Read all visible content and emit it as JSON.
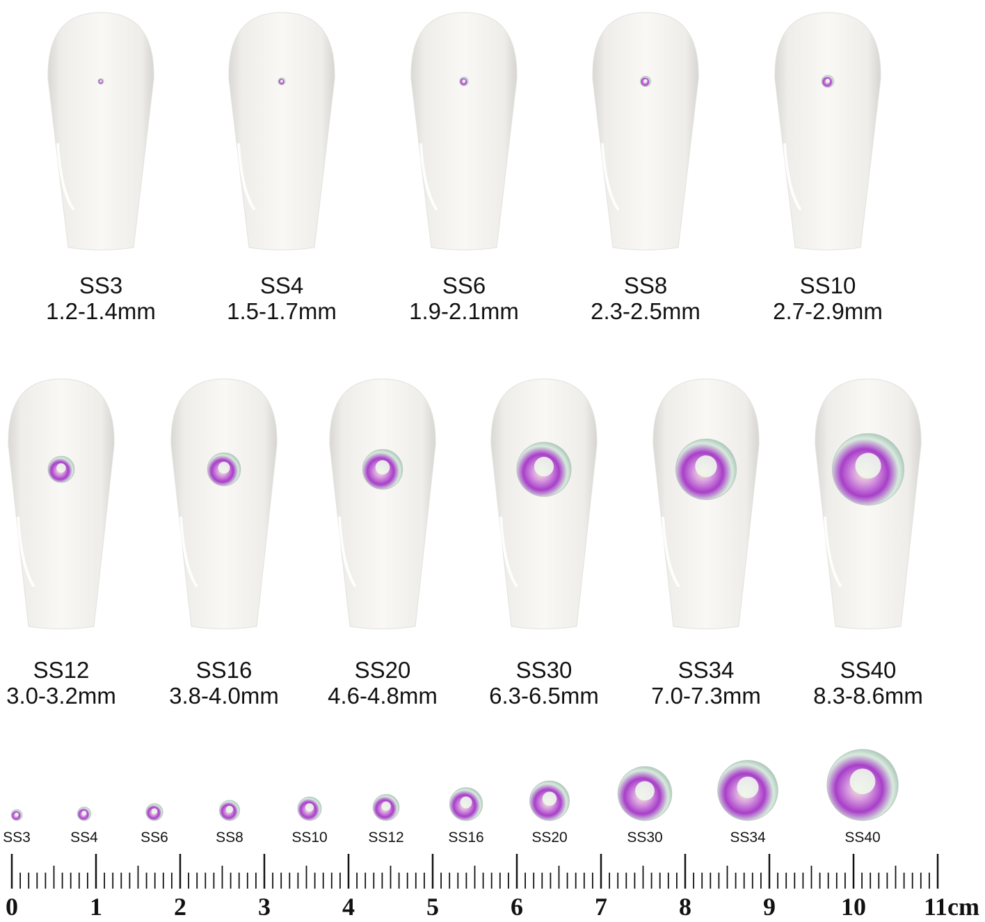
{
  "row1": [
    {
      "size": "SS3",
      "range": "1.2-1.4mm",
      "gem_mm": 1.3
    },
    {
      "size": "SS4",
      "range": "1.5-1.7mm",
      "gem_mm": 1.6
    },
    {
      "size": "SS6",
      "range": "1.9-2.1mm",
      "gem_mm": 2.0
    },
    {
      "size": "SS8",
      "range": "2.3-2.5mm",
      "gem_mm": 2.4
    },
    {
      "size": "SS10",
      "range": "2.7-2.9mm",
      "gem_mm": 2.8
    }
  ],
  "row2": [
    {
      "size": "SS12",
      "range": "3.0-3.2mm",
      "gem_mm": 3.1
    },
    {
      "size": "SS16",
      "range": "3.8-4.0mm",
      "gem_mm": 3.9
    },
    {
      "size": "SS20",
      "range": "4.6-4.8mm",
      "gem_mm": 4.7
    },
    {
      "size": "SS30",
      "range": "6.3-6.5mm",
      "gem_mm": 6.4
    },
    {
      "size": "SS34",
      "range": "7.0-7.3mm",
      "gem_mm": 7.15
    },
    {
      "size": "SS40",
      "range": "8.3-8.6mm",
      "gem_mm": 8.45
    }
  ],
  "scale_row": [
    "SS3",
    "SS4",
    "SS6",
    "SS8",
    "SS10",
    "SS12",
    "SS16",
    "SS20",
    "SS30",
    "SS34",
    "SS40"
  ],
  "ruler": {
    "labels": [
      "0",
      "1",
      "2",
      "3",
      "4",
      "5",
      "6",
      "7",
      "8",
      "9",
      "10",
      "11cm"
    ],
    "max_cm": 11
  },
  "colors": {
    "nail": "#f6f5f2",
    "gem_pink": "#c34bd6",
    "gem_green": "#cfeee0"
  }
}
